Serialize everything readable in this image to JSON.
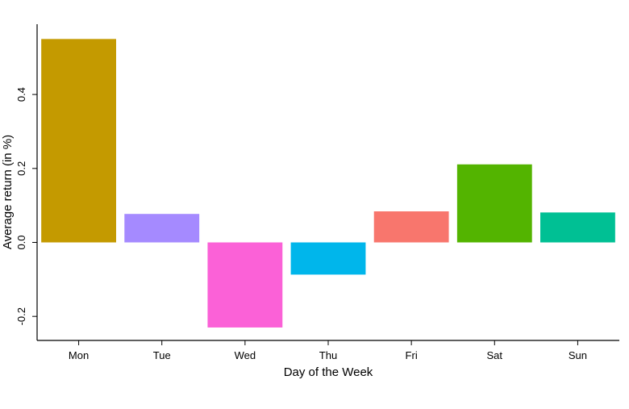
{
  "chart_data": {
    "type": "bar",
    "categories": [
      "Mon",
      "Tue",
      "Wed",
      "Thu",
      "Fri",
      "Sat",
      "Sun"
    ],
    "values": [
      0.55,
      0.077,
      -0.23,
      -0.087,
      0.084,
      0.211,
      0.081
    ],
    "colors": [
      "#C49A00",
      "#A58AFF",
      "#FB61D7",
      "#00B6EB",
      "#F8766D",
      "#53B400",
      "#00C094"
    ],
    "xlabel": "Day of the Week",
    "ylabel": "Average return (in %)",
    "ylim": [
      -0.265,
      0.59
    ],
    "yticks": [
      -0.2,
      0.0,
      0.2,
      0.4
    ],
    "ytick_labels": [
      "-0.2",
      "0.0",
      "0.2",
      "0.4"
    ],
    "grid": false,
    "legend": "none"
  }
}
